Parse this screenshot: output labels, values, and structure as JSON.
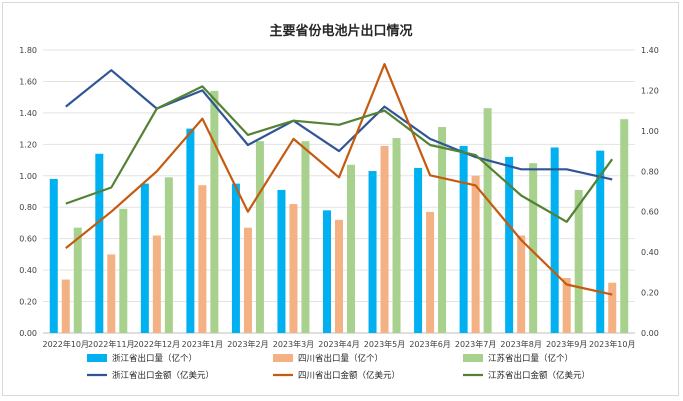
{
  "chart_data": {
    "type": "bar",
    "title": "主要省份电池片出口情况",
    "categories": [
      "2022年10月",
      "2022年11月",
      "2022年12月",
      "2023年1月",
      "2023年2月",
      "2023年3月",
      "2023年4月",
      "2023年5月",
      "2023年6月",
      "2023年7月",
      "2023年8月",
      "2023年9月",
      "2023年10月"
    ],
    "left_axis": {
      "min": 0,
      "max": 1.8,
      "ticks": [
        "0.00",
        "0.20",
        "0.40",
        "0.60",
        "0.80",
        "1.00",
        "1.20",
        "1.40",
        "1.60",
        "1.80"
      ]
    },
    "right_axis": {
      "min": 0,
      "max": 1.4,
      "ticks": [
        "0.00",
        "0.20",
        "0.40",
        "0.60",
        "0.80",
        "1.00",
        "1.20",
        "1.40"
      ]
    },
    "gridlines": true,
    "legend_position": "bottom",
    "bar_series": [
      {
        "name": "浙江省出口量（亿个）",
        "color": "#00B0F0",
        "axis": "left",
        "values": [
          0.98,
          1.14,
          0.95,
          1.3,
          0.95,
          0.91,
          0.78,
          1.03,
          1.05,
          1.19,
          1.12,
          1.18,
          1.16
        ]
      },
      {
        "name": "四川省出口量（亿个）",
        "color": "#F4B183",
        "axis": "left",
        "values": [
          0.34,
          0.5,
          0.62,
          0.94,
          0.67,
          0.82,
          0.72,
          1.19,
          0.77,
          1.0,
          0.62,
          0.35,
          0.32
        ]
      },
      {
        "name": "江苏省出口量（亿个）",
        "color": "#A9D18E",
        "axis": "left",
        "values": [
          0.67,
          0.79,
          0.99,
          1.54,
          1.22,
          1.22,
          1.07,
          1.24,
          1.31,
          1.43,
          1.08,
          0.91,
          1.36
        ]
      }
    ],
    "line_series": [
      {
        "name": "浙江省出口金额（亿美元）",
        "color": "#2F5597",
        "axis": "right",
        "values": [
          1.12,
          1.3,
          1.11,
          1.2,
          0.93,
          1.05,
          0.9,
          1.12,
          0.96,
          0.87,
          0.81,
          0.81,
          0.76
        ]
      },
      {
        "name": "四川省出口金额（亿美元）",
        "color": "#C55A11",
        "axis": "right",
        "values": [
          0.42,
          0.6,
          0.8,
          1.06,
          0.6,
          0.96,
          0.77,
          1.33,
          0.78,
          0.73,
          0.46,
          0.24,
          0.19
        ]
      },
      {
        "name": "江苏省出口金额（亿美元）",
        "color": "#548235",
        "axis": "right",
        "values": [
          0.64,
          0.72,
          1.11,
          1.22,
          0.98,
          1.05,
          1.03,
          1.1,
          0.93,
          0.88,
          0.68,
          0.55,
          0.86
        ]
      }
    ]
  }
}
